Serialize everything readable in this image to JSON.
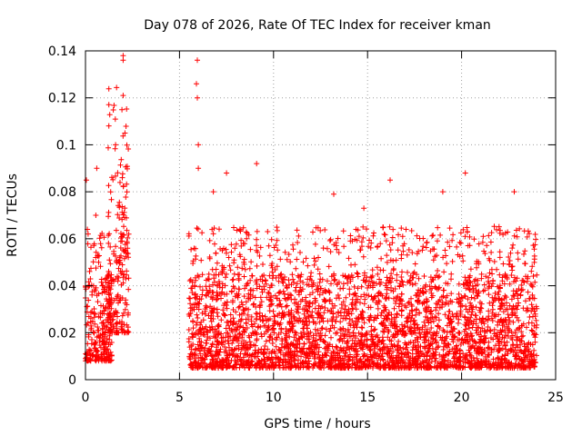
{
  "chart_data": {
    "type": "scatter",
    "title": "Day 078 of 2026, Rate Of TEC Index for receiver kman",
    "xlabel": "GPS time / hours",
    "ylabel": "ROTI / TECUs",
    "xlim": [
      0,
      25
    ],
    "ylim": [
      0,
      0.14
    ],
    "xticks": [
      0,
      5,
      10,
      15,
      20,
      25
    ],
    "yticks": [
      0,
      0.02,
      0.04,
      0.06,
      0.08,
      0.1,
      0.12,
      0.14
    ],
    "xtick_labels": [
      "0",
      "5",
      "10",
      "15",
      "20",
      "25"
    ],
    "ytick_labels": [
      "0",
      "0.02",
      "0.04",
      "0.06",
      "0.08",
      "0.1",
      "0.12",
      "0.14"
    ],
    "grid": true,
    "marker": "+",
    "color": "#ff0000",
    "series": [
      {
        "name": "ROTI",
        "segments": [
          {
            "x_range": [
              0.0,
              1.4
            ],
            "typical": [
              0.008,
              0.045
            ],
            "outliers": [
              [
                0.05,
                0.085
              ],
              [
                0.6,
                0.09
              ],
              [
                0.55,
                0.07
              ],
              [
                0.1,
                0.064
              ]
            ]
          },
          {
            "x_range": [
              1.2,
              2.3
            ],
            "typical": [
              0.02,
              0.09
            ],
            "outliers": [
              [
                2.0,
                0.138
              ],
              [
                2.0,
                0.136
              ],
              [
                2.0,
                0.121
              ],
              [
                2.1,
                0.105
              ],
              [
                1.6,
                0.1
              ],
              [
                2.3,
                0.062
              ]
            ]
          },
          {
            "x_range": [
              5.5,
              24.0
            ],
            "typical": [
              0.005,
              0.045
            ],
            "outliers": [
              [
                5.95,
                0.136
              ],
              [
                5.9,
                0.126
              ],
              [
                5.95,
                0.12
              ],
              [
                6.0,
                0.1
              ],
              [
                6.0,
                0.09
              ],
              [
                7.5,
                0.088
              ],
              [
                9.1,
                0.092
              ],
              [
                16.2,
                0.085
              ],
              [
                19.0,
                0.08
              ],
              [
                20.2,
                0.088
              ],
              [
                22.8,
                0.08
              ],
              [
                13.2,
                0.079
              ],
              [
                6.8,
                0.08
              ],
              [
                14.8,
                0.073
              ]
            ]
          }
        ]
      }
    ]
  }
}
